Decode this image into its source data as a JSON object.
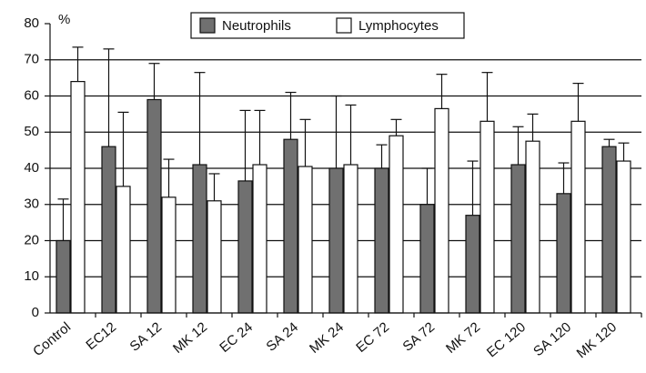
{
  "chart_data": {
    "type": "bar",
    "y_label": "%",
    "categories": [
      "Control",
      "EC12",
      "SA 12",
      "MK 12",
      "EC 24",
      "SA 24",
      "MK 24",
      "EC 72",
      "SA 72",
      "MK 72",
      "EC 120",
      "SA 120",
      "MK 120"
    ],
    "series": [
      {
        "name": "Neutrophils",
        "color": "#707070",
        "values": [
          20,
          46,
          59,
          41,
          36.5,
          48,
          40,
          40,
          30,
          27,
          41,
          33,
          46
        ],
        "errors": [
          11.5,
          27,
          10,
          25.5,
          19.5,
          13,
          20,
          6.5,
          10,
          15,
          10.5,
          8.5,
          2
        ]
      },
      {
        "name": "Lymphocytes",
        "color": "#ffffff",
        "values": [
          64,
          35,
          32,
          31,
          41,
          40.5,
          41,
          49,
          56.5,
          53,
          47.5,
          53,
          42
        ],
        "errors": [
          9.5,
          20.5,
          10.5,
          7.5,
          15,
          13,
          16.5,
          4.5,
          9.5,
          13.5,
          7.5,
          10.5,
          5
        ]
      }
    ],
    "ylim": [
      0,
      80
    ],
    "yticks": [
      0,
      10,
      20,
      30,
      40,
      50,
      60,
      70,
      80
    ],
    "grid": true,
    "legend": "top"
  }
}
